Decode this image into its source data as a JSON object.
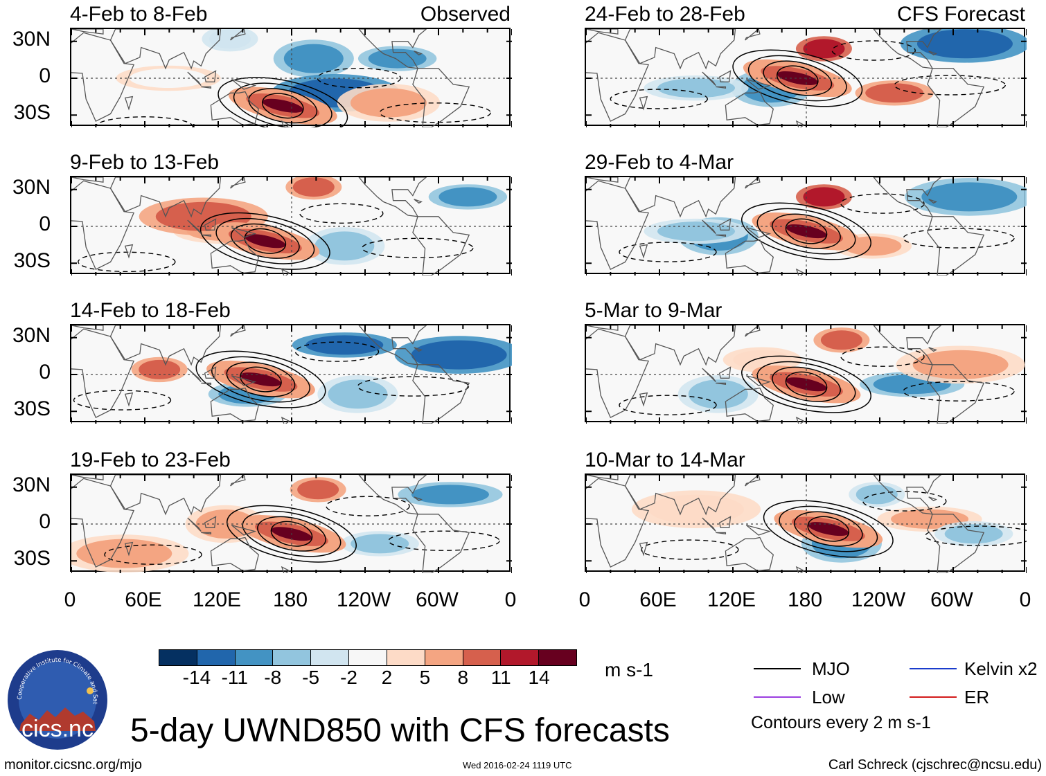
{
  "colors": {
    "scale": [
      "#053061",
      "#2166ac",
      "#4393c3",
      "#92c5de",
      "#d1e5f0",
      "#f7f7f7",
      "#fddbc7",
      "#f4a582",
      "#d6604d",
      "#b2182b",
      "#67001f"
    ],
    "mjo": "#000000",
    "kelvin": "#1a3ccc",
    "low": "#9b3ee0",
    "er": "#d31a1a"
  },
  "panels": [
    {
      "col": 0,
      "row": 0,
      "date_range": "4-Feb to 8-Feb",
      "tag": "Observed"
    },
    {
      "col": 0,
      "row": 1,
      "date_range": "9-Feb to 13-Feb",
      "tag": ""
    },
    {
      "col": 0,
      "row": 2,
      "date_range": "14-Feb to 18-Feb",
      "tag": ""
    },
    {
      "col": 0,
      "row": 3,
      "date_range": "19-Feb to 23-Feb",
      "tag": ""
    },
    {
      "col": 1,
      "row": 0,
      "date_range": "24-Feb to 28-Feb",
      "tag": "CFS Forecast"
    },
    {
      "col": 1,
      "row": 1,
      "date_range": "29-Feb to 4-Mar",
      "tag": ""
    },
    {
      "col": 1,
      "row": 2,
      "date_range": "5-Mar to 9-Mar",
      "tag": ""
    },
    {
      "col": 1,
      "row": 3,
      "date_range": "10-Mar to 14-Mar",
      "tag": ""
    }
  ],
  "lat_labels": [
    "30N",
    "0",
    "30S"
  ],
  "lon_labels": [
    "0",
    "60E",
    "120E",
    "180",
    "120W",
    "60W",
    "0"
  ],
  "colorbar": {
    "labels": [
      "-14",
      "-11",
      "-8",
      "-5",
      "-2",
      "2",
      "5",
      "8",
      "11",
      "14"
    ],
    "units": "m s-1"
  },
  "legend": {
    "mjo": "MJO",
    "kelvin": "Kelvin x2",
    "low": "Low",
    "er": "ER",
    "note": "Contours every 2 m s-1"
  },
  "logo": {
    "text": "cics.nc",
    "ring_text": "Cooperative Institute for Climate and Satellites"
  },
  "main_title": "5-day UWND850 with CFS forecasts",
  "footer": {
    "url": "monitor.cicsnc.org/mjo",
    "timestamp": "Wed 2016-02-24 1119 UTC",
    "author": "Carl Schreck (cjschrec@ncsu.edu)"
  },
  "map_features": {
    "anomaly_blobs": [
      [
        [
          0.36,
          0.1,
          4
        ],
        [
          0.55,
          0.3,
          2
        ],
        [
          0.22,
          0.5,
          5
        ],
        [
          0.6,
          0.65,
          1
        ],
        [
          0.74,
          0.3,
          2
        ],
        [
          0.72,
          0.75,
          7
        ]
      ],
      [
        [
          0.55,
          0.1,
          8
        ],
        [
          0.62,
          0.7,
          3
        ],
        [
          0.35,
          0.55,
          7
        ],
        [
          0.3,
          0.4,
          8
        ],
        [
          0.9,
          0.2,
          2
        ]
      ],
      [
        [
          0.2,
          0.45,
          8
        ],
        [
          0.65,
          0.7,
          3
        ],
        [
          0.62,
          0.2,
          1
        ],
        [
          0.88,
          0.3,
          1
        ],
        [
          0.4,
          0.7,
          2
        ]
      ],
      [
        [
          0.56,
          0.15,
          8
        ],
        [
          0.35,
          0.5,
          7
        ],
        [
          0.86,
          0.2,
          2
        ],
        [
          0.12,
          0.8,
          7
        ],
        [
          0.7,
          0.7,
          3
        ]
      ],
      [
        [
          0.54,
          0.2,
          9
        ],
        [
          0.42,
          0.6,
          2
        ],
        [
          0.25,
          0.6,
          3
        ],
        [
          0.86,
          0.15,
          1
        ],
        [
          0.7,
          0.65,
          8
        ]
      ],
      [
        [
          0.54,
          0.2,
          9
        ],
        [
          0.3,
          0.6,
          2
        ],
        [
          0.25,
          0.55,
          3
        ],
        [
          0.87,
          0.2,
          2
        ],
        [
          0.65,
          0.7,
          7
        ]
      ],
      [
        [
          0.58,
          0.15,
          8
        ],
        [
          0.3,
          0.7,
          3
        ],
        [
          0.74,
          0.6,
          2
        ],
        [
          0.85,
          0.4,
          7
        ],
        [
          0.4,
          0.35,
          6
        ]
      ],
      [
        [
          0.66,
          0.2,
          3
        ],
        [
          0.58,
          0.7,
          2
        ],
        [
          0.78,
          0.45,
          7
        ],
        [
          0.25,
          0.35,
          6
        ],
        [
          0.88,
          0.6,
          3
        ]
      ]
    ],
    "forcing_centers": [
      [
        0.48,
        0.78,
        10
      ],
      [
        0.44,
        0.65,
        10
      ],
      [
        0.43,
        0.55,
        10
      ],
      [
        0.5,
        0.6,
        10
      ],
      [
        0.48,
        0.5,
        10
      ],
      [
        0.5,
        0.55,
        10
      ],
      [
        0.5,
        0.6,
        10
      ],
      [
        0.55,
        0.55,
        10
      ]
    ]
  }
}
